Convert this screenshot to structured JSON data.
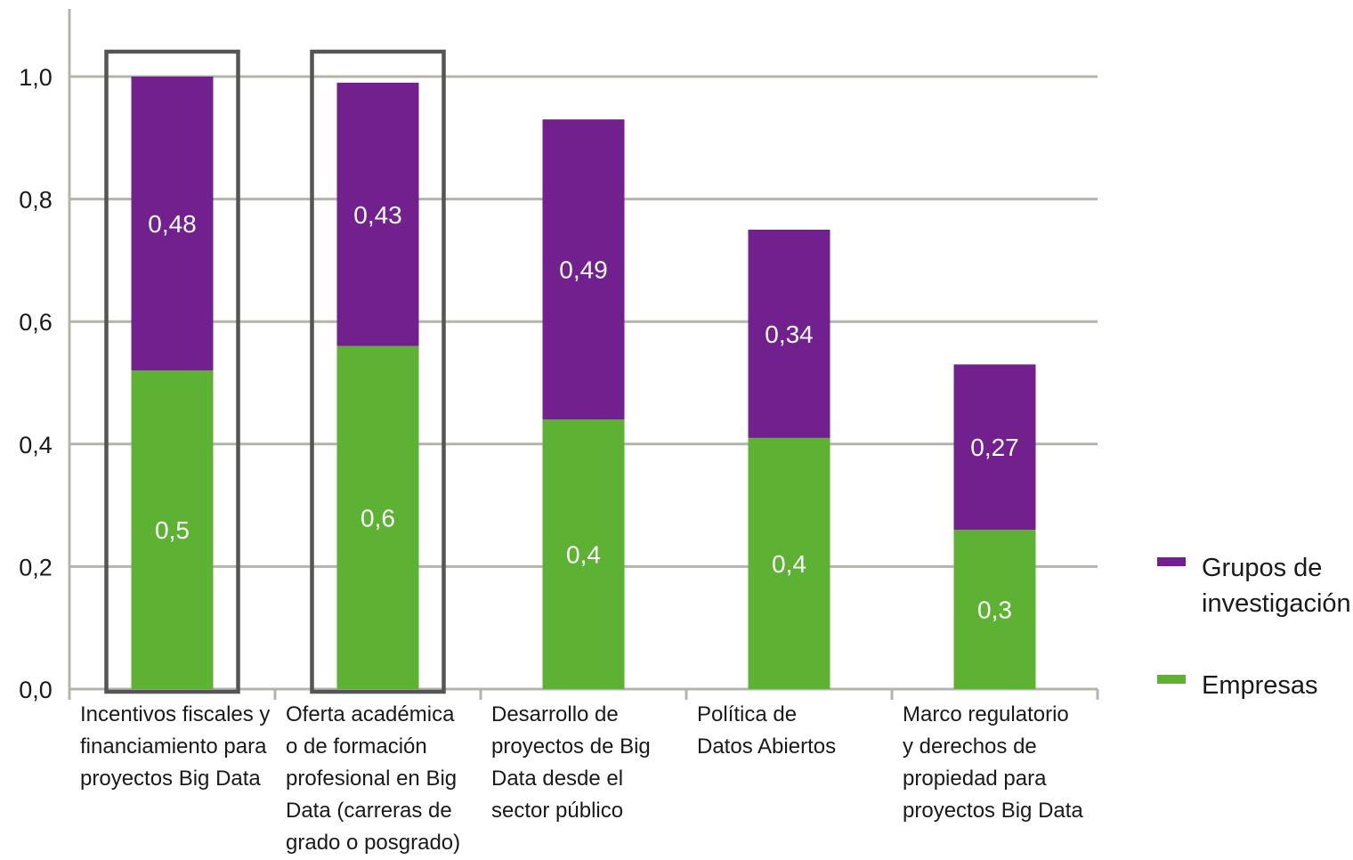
{
  "chart_data": {
    "type": "bar",
    "stacked": true,
    "categories": [
      [
        "Incentivos fiscales y",
        "financiamiento para",
        "proyectos Big Data"
      ],
      [
        "Oferta académica",
        "o de formación",
        "profesional en Big",
        "Data (carreras de",
        "grado o posgrado)"
      ],
      [
        "Desarrollo de",
        "proyectos de Big",
        "Data desde el",
        "sector público"
      ],
      [
        "Política de",
        "Datos Abiertos"
      ],
      [
        "Marco regulatorio",
        "y derechos de",
        "propiedad para",
        "proyectos Big Data"
      ]
    ],
    "series": [
      {
        "name": "Empresas",
        "color": "#5db234",
        "values": [
          0.52,
          0.56,
          0.44,
          0.41,
          0.26
        ],
        "labels": [
          "0,5",
          "0,6",
          "0,4",
          "0,4",
          "0,3"
        ]
      },
      {
        "name": "Grupos de investigación",
        "color": "#71208e",
        "values": [
          0.48,
          0.43,
          0.49,
          0.34,
          0.27
        ],
        "labels": [
          "0,48",
          "0,43",
          "0,49",
          "0,34",
          "0,27"
        ]
      }
    ],
    "highlighted": [
      0,
      1
    ],
    "yticks": [
      "0,0",
      "0,2",
      "0,4",
      "0,6",
      "0,8",
      "1,0"
    ],
    "ylim": [
      0,
      1.0
    ],
    "grid": true,
    "legend": "right",
    "xlabel": "",
    "ylabel": ""
  },
  "legend": {
    "items": [
      {
        "label": "Grupos de investigación",
        "color": "#71208e"
      },
      {
        "label": "Empresas",
        "color": "#5db234"
      }
    ]
  }
}
